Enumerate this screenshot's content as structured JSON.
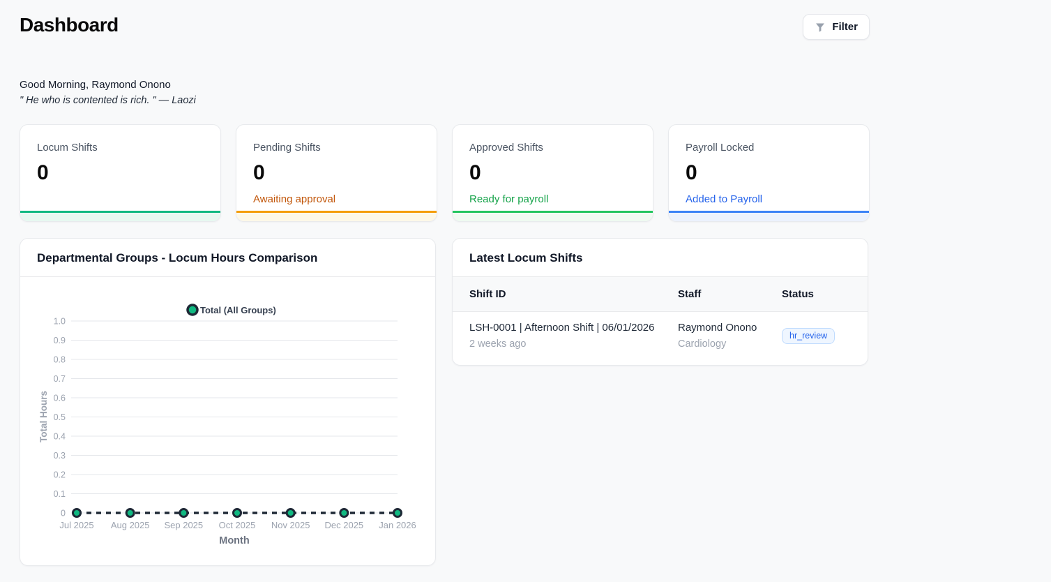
{
  "header": {
    "title": "Dashboard",
    "filter_button": {
      "label": "Filter",
      "icon": "filter-funnel-icon"
    }
  },
  "greeting": {
    "salutation": "Good Morning, Raymond Onono",
    "quote": "\" He who is contented is rich. \" — Laozi"
  },
  "stat_cards": [
    {
      "label": "Locum Shifts",
      "value": "0",
      "sublabel": "",
      "sublabel_color": "",
      "bar_color": "#10b981",
      "tint_color": "#e7f8f1"
    },
    {
      "label": "Pending Shifts",
      "value": "0",
      "sublabel": "Awaiting approval",
      "sublabel_color": "#c2570b",
      "bar_color": "#f59e0b",
      "tint_color": "#fdf8e8"
    },
    {
      "label": "Approved Shifts",
      "value": "0",
      "sublabel": "Ready for payroll",
      "sublabel_color": "#16a34a",
      "bar_color": "#22c55e",
      "tint_color": "#effaf1"
    },
    {
      "label": "Payroll Locked",
      "value": "0",
      "sublabel": "Added to Payroll",
      "sublabel_color": "#2563eb",
      "bar_color": "#3b82f6",
      "tint_color": "#ecf2fd"
    }
  ],
  "chart_data": {
    "type": "line",
    "title": "Departmental Groups - Locum Hours Comparison",
    "x": [
      "Jul 2025",
      "Aug 2025",
      "Sep 2025",
      "Oct 2025",
      "Nov 2025",
      "Dec 2025",
      "Jan 2026"
    ],
    "series": [
      {
        "name": "Total (All Groups)",
        "values": [
          0,
          0,
          0,
          0,
          0,
          0,
          0
        ]
      }
    ],
    "xlabel": "Month",
    "ylabel": "Total Hours",
    "ylim": [
      0,
      1.0
    ],
    "yticks": [
      0,
      0.1,
      0.2,
      0.3,
      0.4,
      0.5,
      0.6,
      0.7,
      0.8,
      0.9,
      1.0
    ],
    "ytick_labels": [
      "0",
      "0.1",
      "0.2",
      "0.3",
      "0.4",
      "0.5",
      "0.6",
      "0.7",
      "0.8",
      "0.9",
      "1.0"
    ],
    "grid": true,
    "legend_position": "top",
    "colors": {
      "point_fill": "#10b981",
      "line_stroke": "#1e2936",
      "grid_line": "#e5e7eb",
      "tick_text": "#9ca3af",
      "axis_title_text": "#6b7280",
      "legend_text": "#374151"
    }
  },
  "shifts_card": {
    "title": "Latest Locum Shifts",
    "columns": [
      "Shift ID",
      "Staff",
      "Status"
    ],
    "rows": [
      {
        "shift_id": "LSH-0001 | Afternoon Shift | 06/01/2026",
        "posted": "2 weeks ago",
        "staff_name": "Raymond Onono",
        "staff_dept": "Cardiology",
        "status": "hr_review"
      }
    ],
    "status_badge_colors": {
      "text": "#2563eb",
      "bg": "#eff6ff",
      "border": "#bfdbfe"
    }
  }
}
